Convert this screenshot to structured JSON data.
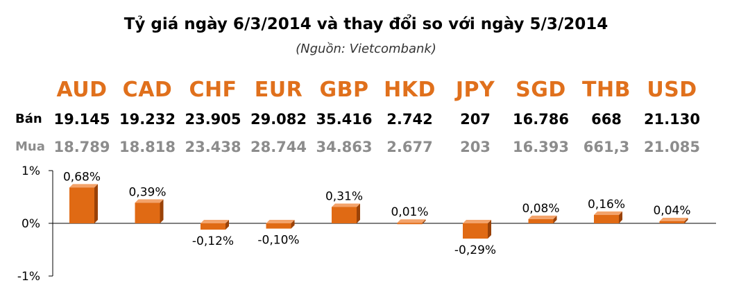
{
  "title": "Tỷ giá ngày 6/3/2014 và thay đổi so với ngày 5/3/2014",
  "subtitle": "(Nguồn: Vietcombank)",
  "labels": {
    "ban": "Bán",
    "mua": "Mua"
  },
  "colors": {
    "currency": "#e0701c",
    "bar_face": "#e06a14",
    "bar_top": "#f3a36b",
    "bar_side": "#9a4208",
    "buy_text": "#8c8c8c"
  },
  "rates": {
    "ban": [
      "19.145",
      "19.232",
      "23.905",
      "29.082",
      "35.416",
      "2.742",
      "207",
      "16.786",
      "668",
      "21.130"
    ],
    "mua": [
      "18.789",
      "18.818",
      "23.438",
      "28.744",
      "34.863",
      "2.677",
      "203",
      "16.393",
      "661,3",
      "21.085"
    ]
  },
  "chart_data": {
    "type": "bar",
    "categories": [
      "AUD",
      "CAD",
      "CHF",
      "EUR",
      "GBP",
      "HKD",
      "JPY",
      "SGD",
      "THB",
      "USD"
    ],
    "values": [
      0.68,
      0.39,
      -0.12,
      -0.1,
      0.31,
      0.01,
      -0.29,
      0.08,
      0.16,
      0.04
    ],
    "value_labels": [
      "0,68%",
      "0,39%",
      "-0,12%",
      "-0,10%",
      "0,31%",
      "0,01%",
      "-0,29%",
      "0,08%",
      "0,16%",
      "0,04%"
    ],
    "ylim": [
      -1,
      1
    ],
    "yticks": [
      1,
      0,
      -1
    ],
    "ytick_labels": [
      "1%",
      "0%",
      "-1%"
    ],
    "xlabel": "",
    "ylabel": "",
    "grid": false,
    "legend": "none"
  }
}
